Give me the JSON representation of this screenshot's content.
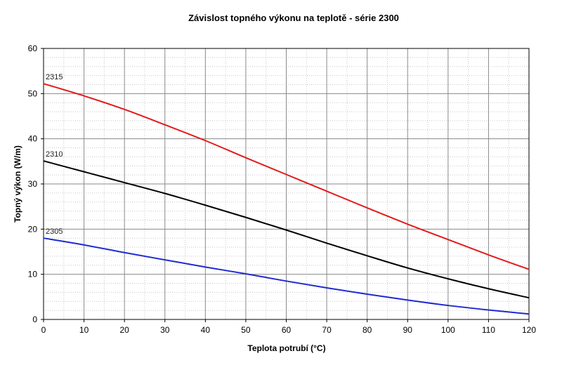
{
  "chart_data": {
    "type": "line",
    "title": "Závislost topného výkonu na teplotě - série 2300",
    "xlabel": "Teplota potrubí (°C)",
    "ylabel": "Topný výkon (W/m)",
    "xlim": [
      0,
      120
    ],
    "ylim": [
      0,
      60
    ],
    "x_ticks": [
      0,
      10,
      20,
      30,
      40,
      50,
      60,
      70,
      80,
      90,
      100,
      110,
      120
    ],
    "y_ticks": [
      0,
      10,
      20,
      30,
      40,
      50,
      60
    ],
    "grid": true,
    "legend": "inline labels at left edge",
    "x": [
      0,
      10,
      20,
      30,
      40,
      50,
      60,
      70,
      80,
      90,
      100,
      110,
      120
    ],
    "series": [
      {
        "name": "2315",
        "color": "#e21b1b",
        "values": [
          52.2,
          49.5,
          46.5,
          43.1,
          39.6,
          35.8,
          32.1,
          28.4,
          24.7,
          21.1,
          17.7,
          14.3,
          11.1
        ]
      },
      {
        "name": "2310",
        "color": "#000000",
        "values": [
          35.1,
          32.7,
          30.3,
          27.9,
          25.3,
          22.6,
          19.8,
          16.9,
          14.1,
          11.4,
          9.0,
          6.8,
          4.8
        ]
      },
      {
        "name": "2305",
        "color": "#1f2ad1",
        "values": [
          18.0,
          16.5,
          14.8,
          13.2,
          11.6,
          10.1,
          8.5,
          7.0,
          5.6,
          4.3,
          3.1,
          2.1,
          1.2
        ]
      }
    ]
  }
}
